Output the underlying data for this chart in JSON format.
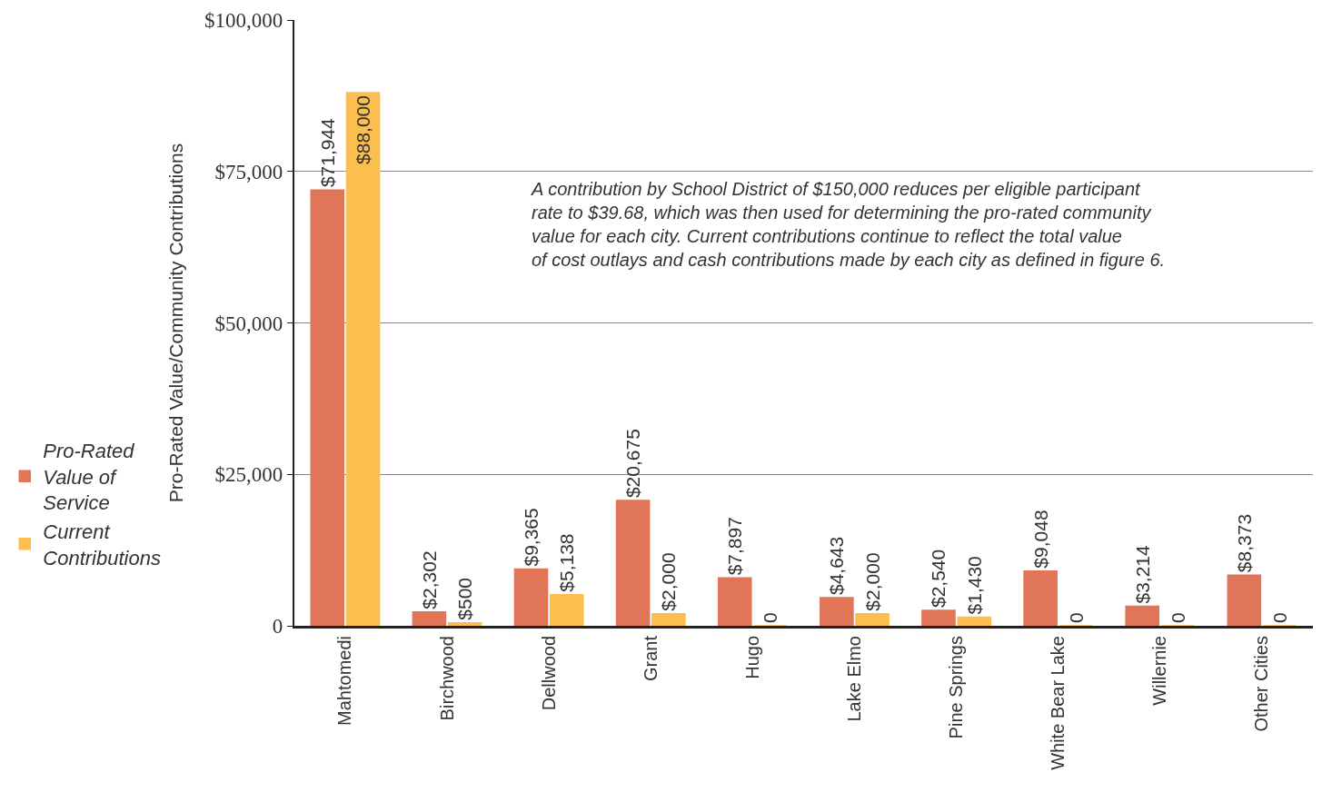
{
  "chart_data": {
    "type": "bar",
    "ylabel": "Pro-Rated Value/Community Contributions",
    "categories": [
      "Mahtomedi",
      "Birchwood",
      "Dellwood",
      "Grant",
      "Hugo",
      "Lake Elmo",
      "Pine Springs",
      "White Bear Lake",
      "Willernie",
      "Other Cities"
    ],
    "series": [
      {
        "name": "Pro-Rated Value of Service",
        "color": "#e07558",
        "values": [
          71944,
          2302,
          9365,
          20675,
          7897,
          4643,
          2540,
          9048,
          3214,
          8373
        ],
        "value_labels": [
          "$71,944",
          "$2,302",
          "$9,365",
          "$20,675",
          "$7,897",
          "$4,643",
          "$2,540",
          "$9,048",
          "$3,214",
          "$8,373"
        ]
      },
      {
        "name": "Current Contributions",
        "color": "#fcbf4e",
        "values": [
          88000,
          500,
          5138,
          2000,
          0,
          2000,
          1430,
          0,
          0,
          0
        ],
        "value_labels": [
          "$88,000",
          "$500",
          "$5,138",
          "$2,000",
          "0",
          "$2,000",
          "$1,430",
          "0",
          "0",
          "0"
        ]
      }
    ],
    "ylim": [
      0,
      100000
    ],
    "yticks": [
      0,
      {
        "value": 25000,
        "label": "$25,000"
      },
      {
        "value": 50000,
        "label": "$50,000"
      },
      {
        "value": 75000,
        "label": "$75,000"
      },
      {
        "value": 100000,
        "label": "$100,000"
      }
    ],
    "grid": "y",
    "legend": "left",
    "annotations": [
      "A contribution by School District of $150,000 reduces per eligible participant rate to $39.68, which was then used for determining the pro-rated community value for each city. Current contributions continue to reflect the total value of cost outlays and cash contributions made by each city as defined in figure 6."
    ]
  }
}
